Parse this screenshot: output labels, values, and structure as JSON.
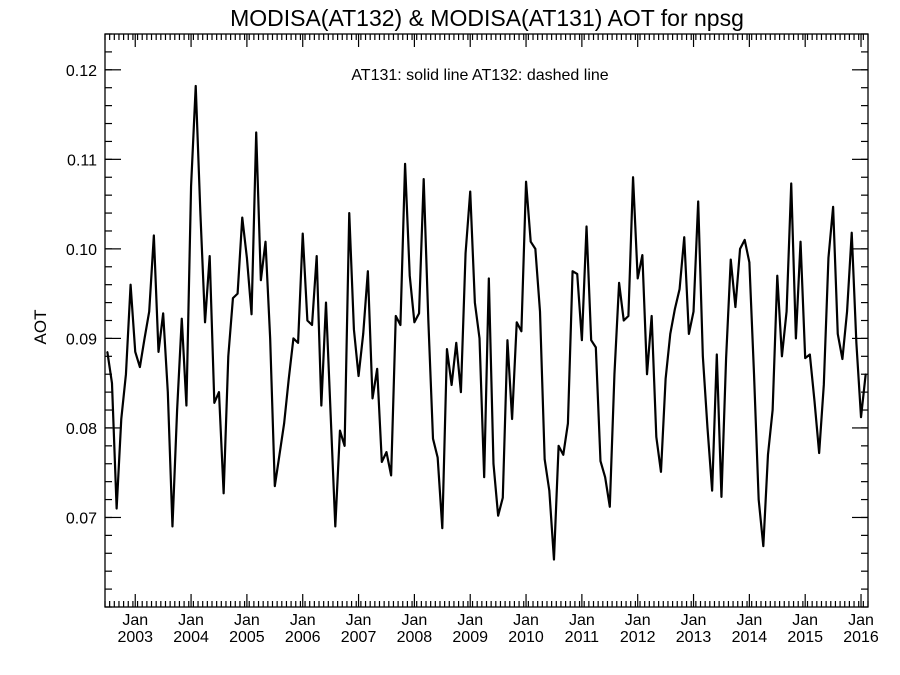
{
  "chart_data": {
    "type": "line",
    "title": "MODISA(AT132) & MODISA(AT131)  AOT for npsg",
    "annotation": "AT131: solid line   AT132: dashed line",
    "ylabel": "AOT",
    "xlabel": "",
    "x_start": "2002-07",
    "ylim": [
      0.06,
      0.124
    ],
    "yticks": [
      "0.07",
      "0.08",
      "0.09",
      "0.10",
      "0.11",
      "0.12"
    ],
    "xticks": [
      {
        "month": "Jan",
        "year": "2003"
      },
      {
        "month": "Jan",
        "year": "2004"
      },
      {
        "month": "Jan",
        "year": "2005"
      },
      {
        "month": "Jan",
        "year": "2006"
      },
      {
        "month": "Jan",
        "year": "2007"
      },
      {
        "month": "Jan",
        "year": "2008"
      },
      {
        "month": "Jan",
        "year": "2009"
      },
      {
        "month": "Jan",
        "year": "2010"
      },
      {
        "month": "Jan",
        "year": "2011"
      },
      {
        "month": "Jan",
        "year": "2012"
      },
      {
        "month": "Jan",
        "year": "2013"
      },
      {
        "month": "Jan",
        "year": "2014"
      },
      {
        "month": "Jan",
        "year": "2015"
      },
      {
        "month": "Jan",
        "year": "2016"
      }
    ],
    "grid": false,
    "legend": "none",
    "series": [
      {
        "values": [
          0.0885,
          0.085,
          0.071,
          0.081,
          0.086,
          0.096,
          0.0885,
          0.0868,
          0.09,
          0.093,
          0.1015,
          0.0885,
          0.0928,
          0.084,
          0.069,
          0.082,
          0.0922,
          0.0825,
          0.107,
          0.1182,
          0.104,
          0.0918,
          0.0992,
          0.0828,
          0.084,
          0.0727,
          0.088,
          0.0945,
          0.095,
          0.1035,
          0.099,
          0.0927,
          0.113,
          0.0965,
          0.1008,
          0.09,
          0.0735,
          0.077,
          0.0805,
          0.0855,
          0.09,
          0.0895,
          0.1017,
          0.092,
          0.0915,
          0.0992,
          0.0825,
          0.094,
          0.0815,
          0.069,
          0.0797,
          0.078,
          0.104,
          0.091,
          0.0858,
          0.0905,
          0.0975,
          0.0833,
          0.0866,
          0.0762,
          0.0773,
          0.0747,
          0.0925,
          0.0915,
          0.1095,
          0.097,
          0.0918,
          0.0928,
          0.1078,
          0.092,
          0.0788,
          0.0767,
          0.0688,
          0.0888,
          0.0848,
          0.0895,
          0.084,
          0.0995,
          0.1064,
          0.094,
          0.09,
          0.0745,
          0.0967,
          0.076,
          0.0702,
          0.0722,
          0.0898,
          0.081,
          0.0918,
          0.0908,
          0.1075,
          0.1008,
          0.1,
          0.093,
          0.0765,
          0.073,
          0.0653,
          0.078,
          0.077,
          0.0805,
          0.0975,
          0.0972,
          0.0898,
          0.1025,
          0.0898,
          0.089,
          0.0763,
          0.0745,
          0.0712,
          0.086,
          0.0962,
          0.092,
          0.0925,
          0.108,
          0.0967,
          0.0993,
          0.086,
          0.0925,
          0.079,
          0.0751,
          0.0855,
          0.0905,
          0.0933,
          0.0955,
          0.1013,
          0.0905,
          0.093,
          0.1053,
          0.088,
          0.08,
          0.073,
          0.0882,
          0.0723,
          0.0878,
          0.0988,
          0.0935,
          0.1,
          0.101,
          0.0985,
          0.086,
          0.072,
          0.0668,
          0.077,
          0.082,
          0.097,
          0.088,
          0.093,
          0.1073,
          0.09,
          0.1008,
          0.0878,
          0.0882,
          0.083,
          0.0772,
          0.0848,
          0.099,
          0.1047,
          0.0905,
          0.0877,
          0.093,
          0.1018,
          0.0895,
          0.0812,
          0.086
        ]
      }
    ]
  }
}
